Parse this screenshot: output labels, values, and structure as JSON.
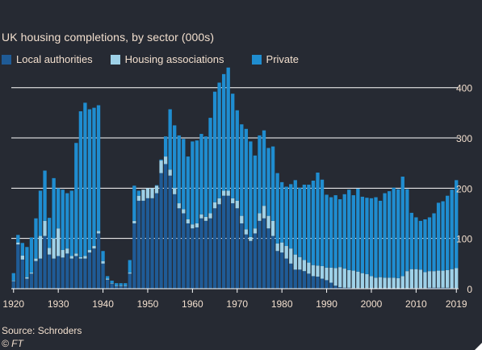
{
  "page": {
    "title": "UK housing completions, by sector (000s)",
    "source": "Source: Schroders",
    "credit": "© FT"
  },
  "colors": {
    "background": "#262a33",
    "local_authorities": "#1f5b96",
    "housing_associations": "#9ed1e8",
    "private": "#1f8dd0",
    "grid": "#ffffff",
    "text": "#f2dfce"
  },
  "chart_data": {
    "type": "bar",
    "stacked": true,
    "title": "UK housing completions, by sector (000s)",
    "xlabel": "",
    "ylabel": "",
    "ylim": [
      0,
      430
    ],
    "yticks": [
      0,
      100,
      200,
      300,
      400
    ],
    "xticks": [
      1920,
      1930,
      1940,
      1950,
      1960,
      1970,
      1980,
      1990,
      2000,
      2010,
      2019
    ],
    "grid": "horizontal",
    "legend_position": "top-left",
    "categories": [
      1920,
      1921,
      1922,
      1923,
      1924,
      1925,
      1926,
      1927,
      1928,
      1929,
      1930,
      1931,
      1932,
      1933,
      1934,
      1935,
      1936,
      1937,
      1938,
      1939,
      1940,
      1941,
      1942,
      1943,
      1944,
      1945,
      1946,
      1947,
      1948,
      1949,
      1950,
      1951,
      1952,
      1953,
      1954,
      1955,
      1956,
      1957,
      1958,
      1959,
      1960,
      1961,
      1962,
      1963,
      1964,
      1965,
      1966,
      1967,
      1968,
      1969,
      1970,
      1971,
      1972,
      1973,
      1974,
      1975,
      1976,
      1977,
      1978,
      1979,
      1980,
      1981,
      1982,
      1983,
      1984,
      1985,
      1986,
      1987,
      1988,
      1989,
      1990,
      1991,
      1992,
      1993,
      1994,
      1995,
      1996,
      1997,
      1998,
      1999,
      2000,
      2001,
      2002,
      2003,
      2004,
      2005,
      2006,
      2007,
      2008,
      2009,
      2010,
      2011,
      2012,
      2013,
      2014,
      2015,
      2016,
      2017,
      2018,
      2019
    ],
    "series": [
      {
        "name": "Local authorities",
        "values": [
          15,
          88,
          58,
          20,
          30,
          55,
          60,
          105,
          68,
          60,
          65,
          62,
          70,
          60,
          65,
          60,
          60,
          72,
          80,
          110,
          50,
          18,
          10,
          5,
          5,
          5,
          30,
          130,
          175,
          175,
          180,
          180,
          190,
          230,
          248,
          225,
          188,
          160,
          150,
          130,
          120,
          122,
          140,
          135,
          140,
          160,
          168,
          185,
          185,
          170,
          160,
          130,
          108,
          95,
          110,
          135,
          140,
          120,
          105,
          75,
          72,
          60,
          50,
          38,
          38,
          35,
          30,
          25,
          24,
          20,
          17,
          12,
          6,
          3,
          2,
          2,
          1,
          1,
          1,
          1,
          0,
          0,
          0,
          0,
          0,
          0,
          0,
          0,
          0,
          1,
          1,
          1,
          1,
          2,
          2,
          2,
          2,
          2,
          1,
          1
        ]
      },
      {
        "name": "Housing associations",
        "values": [
          1,
          4,
          8,
          3,
          2,
          5,
          45,
          30,
          13,
          40,
          55,
          15,
          10,
          5,
          5,
          3,
          5,
          5,
          5,
          5,
          5,
          2,
          1,
          1,
          1,
          1,
          2,
          5,
          10,
          22,
          20,
          20,
          15,
          25,
          15,
          12,
          12,
          10,
          8,
          8,
          8,
          8,
          8,
          8,
          10,
          12,
          12,
          10,
          10,
          10,
          15,
          15,
          10,
          8,
          10,
          15,
          25,
          25,
          30,
          15,
          20,
          25,
          30,
          30,
          25,
          22,
          22,
          22,
          22,
          25,
          25,
          30,
          35,
          40,
          38,
          35,
          35,
          33,
          30,
          28,
          25,
          22,
          23,
          22,
          22,
          22,
          21,
          25,
          35,
          38,
          38,
          37,
          32,
          33,
          33,
          34,
          34,
          35,
          38,
          40
        ]
      },
      {
        "name": "Private",
        "values": [
          15,
          15,
          25,
          60,
          70,
          80,
          90,
          100,
          60,
          120,
          80,
          120,
          110,
          130,
          220,
          290,
          305,
          280,
          275,
          250,
          20,
          5,
          5,
          5,
          5,
          5,
          25,
          70,
          10,
          0,
          0,
          0,
          1,
          2,
          40,
          120,
          125,
          135,
          140,
          125,
          165,
          165,
          160,
          160,
          190,
          220,
          230,
          232,
          245,
          208,
          180,
          182,
          200,
          190,
          145,
          155,
          150,
          135,
          148,
          140,
          120,
          118,
          128,
          148,
          138,
          150,
          155,
          168,
          185,
          172,
          145,
          140,
          145,
          135,
          148,
          160,
          150,
          165,
          152,
          152,
          155,
          160,
          152,
          168,
          172,
          179,
          177,
          198,
          163,
          112,
          103,
          97,
          105,
          107,
          115,
          135,
          138,
          148,
          158,
          175
        ]
      }
    ]
  }
}
